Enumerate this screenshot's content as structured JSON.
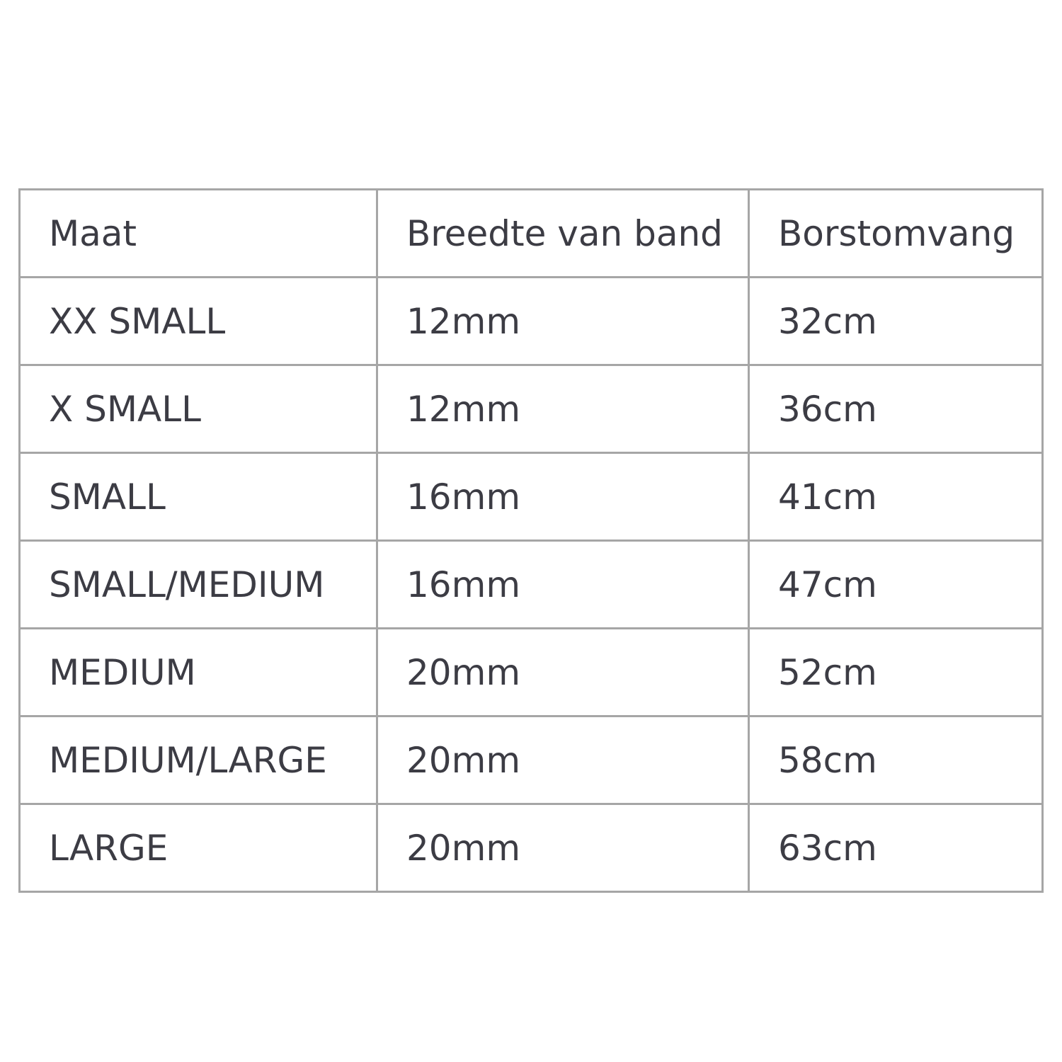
{
  "table": {
    "headers": [
      "Maat",
      "Breedte van band",
      "Borstomvang"
    ],
    "rows": [
      [
        "XX SMALL",
        "12mm",
        "32cm"
      ],
      [
        "X SMALL",
        "12mm",
        "36cm"
      ],
      [
        "SMALL",
        "16mm",
        "41cm"
      ],
      [
        "SMALL/MEDIUM",
        "16mm",
        "47cm"
      ],
      [
        "MEDIUM",
        "20mm",
        "52cm"
      ],
      [
        "MEDIUM/LARGE",
        "20mm",
        "58cm"
      ],
      [
        "LARGE",
        "20mm",
        "63cm"
      ]
    ]
  }
}
